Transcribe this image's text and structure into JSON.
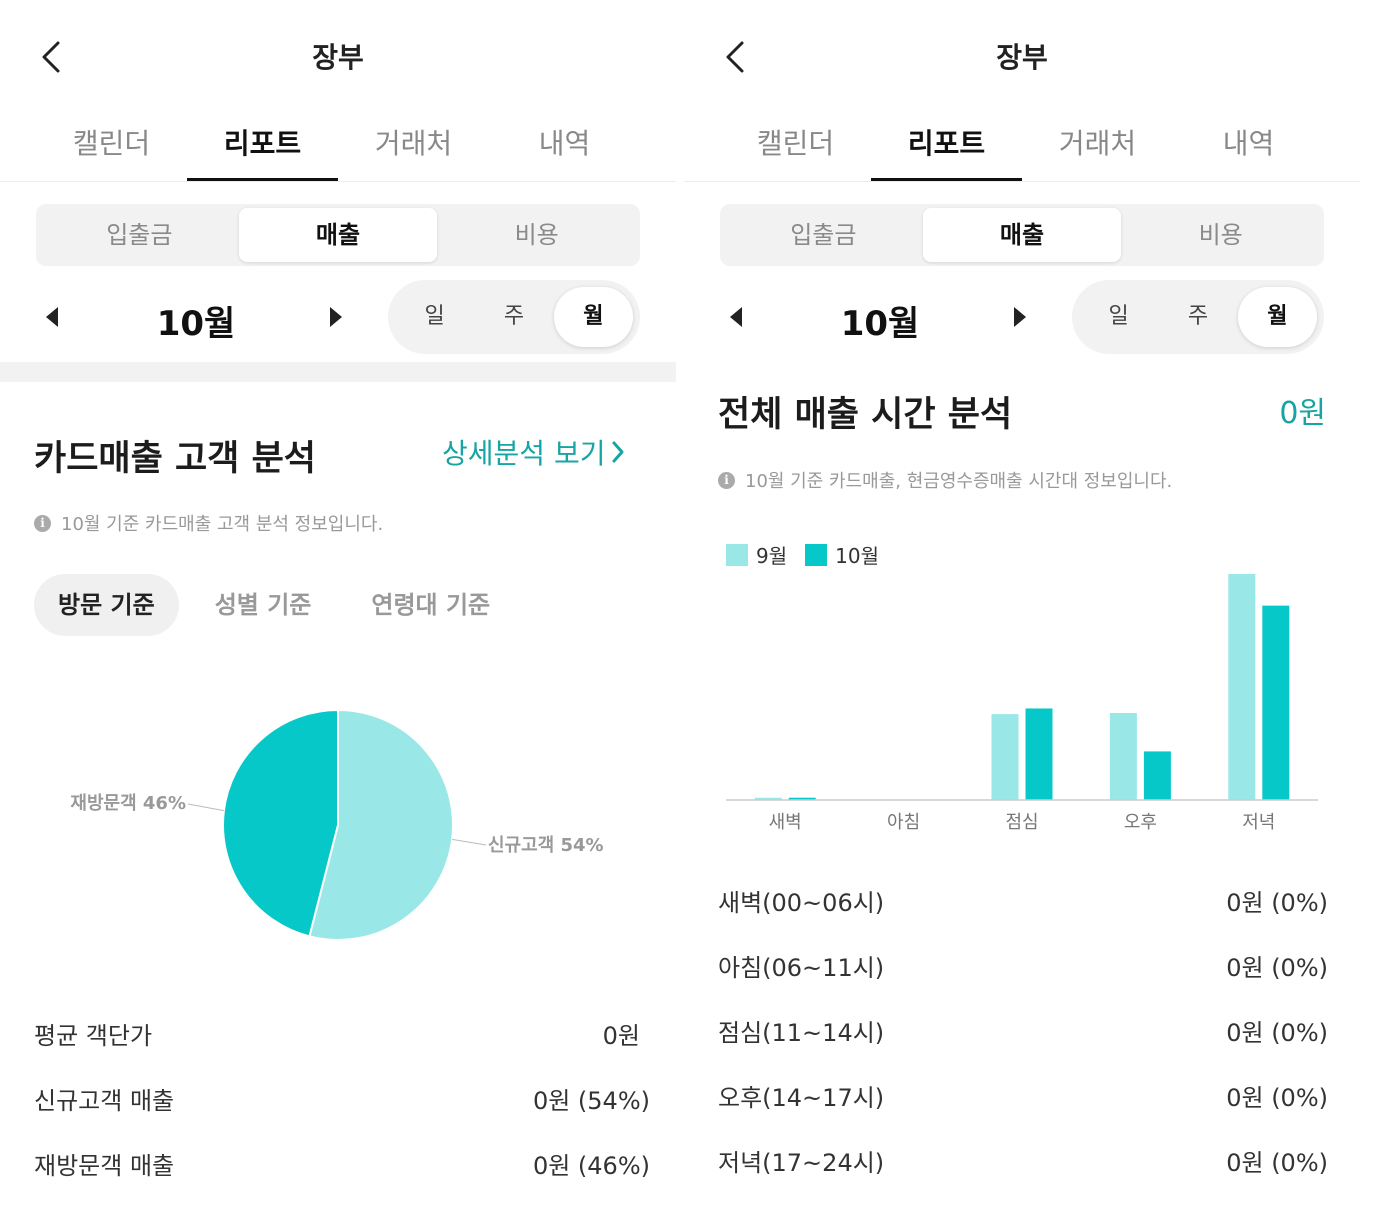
{
  "colors": {
    "accent": "#17a4a4",
    "sep_light": "#9ae7e7",
    "oct_teal": "#06c8c8",
    "pie_new": "#9ae7e7",
    "pie_return": "#06c8c8"
  },
  "left": {
    "header": {
      "title": "장부",
      "back_icon": "chevron-left-icon"
    },
    "main_tabs": [
      {
        "label": "캘린더"
      },
      {
        "label": "리포트",
        "active": true
      },
      {
        "label": "거래처"
      },
      {
        "label": "내역"
      }
    ],
    "segment": [
      {
        "label": "입출금"
      },
      {
        "label": "매출",
        "active": true
      },
      {
        "label": "비용"
      }
    ],
    "month": {
      "label": "10월"
    },
    "period": [
      {
        "label": "일"
      },
      {
        "label": "주"
      },
      {
        "label": "월",
        "active": true
      }
    ],
    "section_title": "카드매출 고객 분석",
    "detail_link": "상세분석 보기",
    "info_text": "10월 기준 카드매출 고객 분석 정보입니다.",
    "sub_tabs": [
      {
        "label": "방문 기준",
        "active": true
      },
      {
        "label": "성별 기준"
      },
      {
        "label": "연령대 기준"
      }
    ],
    "pie": {
      "slices": [
        {
          "label": "신규고객 54%",
          "value": 54
        },
        {
          "label": "재방문객 46%",
          "value": 46
        }
      ]
    },
    "summary": [
      {
        "label": "평균 객단가",
        "value": "0원"
      },
      {
        "label": "신규고객 매출",
        "value": "0원 (54%)"
      },
      {
        "label": "재방문객 매출",
        "value": "0원 (46%)"
      }
    ]
  },
  "right": {
    "header": {
      "title": "장부",
      "back_icon": "chevron-left-icon"
    },
    "main_tabs": [
      {
        "label": "캘린더"
      },
      {
        "label": "리포트",
        "active": true
      },
      {
        "label": "거래처"
      },
      {
        "label": "내역"
      }
    ],
    "segment": [
      {
        "label": "입출금"
      },
      {
        "label": "매출",
        "active": true
      },
      {
        "label": "비용"
      }
    ],
    "month": {
      "label": "10월"
    },
    "period": [
      {
        "label": "일"
      },
      {
        "label": "주"
      },
      {
        "label": "월",
        "active": true
      }
    ],
    "section_title": "전체 매출 시간 분석",
    "total_amount": "0원",
    "info_text": "10월 기준 카드매출, 현금영수증매출 시간대 정보입니다.",
    "summary": [
      {
        "label": "새벽(00~06시)",
        "value": "0원 (0%)"
      },
      {
        "label": "아침(06~11시)",
        "value": "0원 (0%)"
      },
      {
        "label": "점심(11~14시)",
        "value": "0원 (0%)"
      },
      {
        "label": "오후(14~17시)",
        "value": "0원 (0%)"
      },
      {
        "label": "저녁(17~24시)",
        "value": "0원 (0%)"
      }
    ]
  },
  "chart_data": {
    "type": "bar",
    "categories": [
      "새벽",
      "아침",
      "점심",
      "오후",
      "저녁"
    ],
    "series": [
      {
        "name": "9월",
        "values": [
          1,
          0,
          38,
          38.5,
          100
        ]
      },
      {
        "name": "10월",
        "values": [
          1,
          0,
          40.5,
          21.5,
          86
        ]
      }
    ],
    "ylim": [
      0,
      100
    ],
    "legend": "top-left",
    "grid": false,
    "xlabel": "",
    "ylabel": ""
  }
}
